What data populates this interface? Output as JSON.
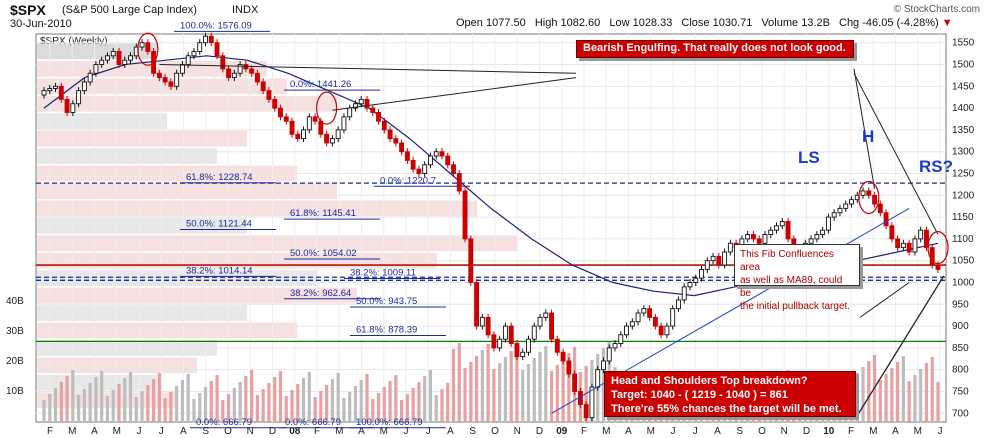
{
  "header": {
    "ticker": "$SPX",
    "description": "(S&P 500 Large Cap Index)",
    "exchange": "INDX",
    "date": "30-Jun-2010",
    "credit": "© StockCharts.com",
    "open_label": "Open",
    "open": "1077.50",
    "high_label": "High",
    "high": "1082.60",
    "low_label": "Low",
    "low": "1028.33",
    "close_label": "Close",
    "close": "1030.71",
    "volume_label": "Volume",
    "volume": "13.2B",
    "change_label": "Chg",
    "change": "-46.05 (-4.28%)"
  },
  "colors": {
    "up": "#111111",
    "down": "#cc0000",
    "ma": "#1a237e",
    "fib": "#1a2a9c",
    "support": "#008800",
    "annotation": "#cc0000",
    "hs_label": "#1a3bd0"
  },
  "chart_data": {
    "type": "candlestick",
    "title": "$SPX (Weekly)",
    "x_labels": [
      "F",
      "M",
      "A",
      "M",
      "J",
      "J",
      "A",
      "S",
      "O",
      "N",
      "D",
      "08",
      "F",
      "M",
      "A",
      "M",
      "J",
      "J",
      "A",
      "S",
      "O",
      "N",
      "D",
      "09",
      "F",
      "M",
      "A",
      "M",
      "J",
      "J",
      "A",
      "S",
      "O",
      "N",
      "D",
      "10",
      "F",
      "M",
      "A",
      "M",
      "J"
    ],
    "y_ticks": [
      700,
      750,
      800,
      850,
      900,
      950,
      1000,
      1050,
      1100,
      1150,
      1200,
      1250,
      1300,
      1350,
      1400,
      1450,
      1500,
      1550
    ],
    "ylim": [
      680,
      1570
    ],
    "volume_ticks": [
      "10B",
      "20B",
      "30B",
      "40B"
    ],
    "price_path": [
      1440,
      1445,
      1450,
      1420,
      1390,
      1410,
      1440,
      1460,
      1480,
      1500,
      1510,
      1520,
      1530,
      1500,
      1510,
      1520,
      1540,
      1550,
      1530,
      1480,
      1470,
      1460,
      1450,
      1480,
      1500,
      1520,
      1530,
      1550,
      1565,
      1550,
      1520,
      1490,
      1470,
      1480,
      1500,
      1490,
      1480,
      1460,
      1440,
      1420,
      1400,
      1380,
      1370,
      1340,
      1330,
      1350,
      1380,
      1370,
      1340,
      1320,
      1330,
      1350,
      1380,
      1400,
      1410,
      1420,
      1400,
      1390,
      1370,
      1350,
      1330,
      1320,
      1300,
      1280,
      1260,
      1250,
      1270,
      1290,
      1300,
      1290,
      1270,
      1250,
      1210,
      1100,
      1000,
      900,
      920,
      880,
      850,
      870,
      900,
      860,
      830,
      840,
      870,
      900,
      920,
      930,
      870,
      840,
      820,
      790,
      750,
      720,
      690,
      760,
      800,
      820,
      850,
      860,
      880,
      900,
      910,
      930,
      940,
      920,
      900,
      880,
      900,
      940,
      960,
      990,
      1000,
      1010,
      1030,
      1050,
      1060,
      1040,
      1070,
      1090,
      1080,
      1100,
      1110,
      1100,
      1090,
      1110,
      1120,
      1130,
      1140,
      1100,
      1070,
      1080,
      1090,
      1100,
      1110,
      1120,
      1150,
      1160,
      1170,
      1180,
      1190,
      1200,
      1210,
      1200,
      1180,
      1160,
      1130,
      1100,
      1080,
      1090,
      1070,
      1100,
      1120,
      1080,
      1040,
      1030
    ],
    "moving_average": [
      1400,
      1470,
      1500,
      1510,
      1520,
      1510,
      1480,
      1440,
      1400,
      1330,
      1250,
      1170,
      1100,
      1040,
      1000,
      980,
      970,
      990,
      1010,
      1030,
      1050,
      1070,
      1090
    ],
    "fib_levels": [
      {
        "label": "100.0%: 1576.09",
        "value": 1576.09
      },
      {
        "label": "0.0%: 1441.26",
        "value": 1441.26
      },
      {
        "label": "0.0%: 1220.7",
        "value": 1220.7
      },
      {
        "label": "61.8%: 1228.74",
        "value": 1228.74
      },
      {
        "label": "61.8%: 1145.41",
        "value": 1145.41
      },
      {
        "label": "50.0%: 1121.44",
        "value": 1121.44
      },
      {
        "label": "50.0%: 1054.02",
        "value": 1054.02
      },
      {
        "label": "38.2%: 1014.14",
        "value": 1014.14
      },
      {
        "label": "38.2%: 1009.11",
        "value": 1009.11
      },
      {
        "label": "38.2%: 962.64",
        "value": 962.64
      },
      {
        "label": "50.0%: 943.75",
        "value": 943.75
      },
      {
        "label": "61.8%: 878.39",
        "value": 878.39
      },
      {
        "label": "0.0%: 666.79",
        "value": 666.79
      },
      {
        "label": "0.0%: 666.79",
        "value": 666.79
      },
      {
        "label": "100.0%: 666.79",
        "value": 666.79
      }
    ],
    "horizontal_lines": [
      {
        "value": 1228,
        "style": "dashed",
        "color": "#1a2a9c"
      },
      {
        "value": 1040,
        "style": "solid",
        "color": "#008800"
      },
      {
        "value": 1040,
        "style": "solid",
        "color": "#cc0000"
      },
      {
        "value": 1012,
        "style": "dashed",
        "color": "#1a2a9c"
      },
      {
        "value": 1005,
        "style": "dashed",
        "color": "#1a2a9c"
      },
      {
        "value": 865,
        "style": "solid",
        "color": "#008800"
      }
    ]
  },
  "annotations": {
    "bearish": "Bearish Engulfing. That really does not look good.",
    "fib": [
      "This Fib Confluences area",
      "as well as MA89, could be",
      "the initial pullback target."
    ],
    "hs": [
      "Head and Shoulders Top breakdown?",
      "Target: 1040 - ( 1219 - 1040 ) = 861",
      "There're 55% chances the target will be met."
    ],
    "ls": "LS",
    "h": "H",
    "rs": "RS?"
  }
}
